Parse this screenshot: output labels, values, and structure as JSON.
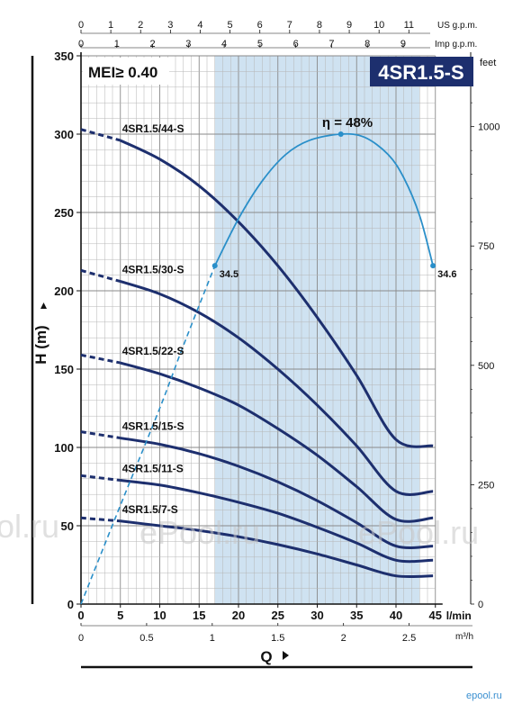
{
  "chart_data": {
    "type": "line",
    "model_badge": "4SR1.5-S",
    "mei_label": "MEI≥ 0.40",
    "ylabel": "H  (m)",
    "xlabel": "Q",
    "ylim": [
      0,
      350
    ],
    "xlim": [
      0,
      45
    ],
    "y_ticks": [
      0,
      50,
      100,
      150,
      200,
      250,
      300,
      350
    ],
    "x_ticks_lmin": [
      0,
      5,
      10,
      15,
      20,
      25,
      30,
      35,
      40,
      45
    ],
    "x_unit_lmin": "l/min",
    "x_ticks_m3h": [
      "0",
      "0.5",
      "1",
      "1.5",
      "2",
      "2.5"
    ],
    "x_ticks_m3h_values": [
      0,
      0.5,
      1,
      1.5,
      2,
      2.5
    ],
    "x_unit_m3h": "m³/h",
    "x_ticks_us": [
      0,
      1,
      2,
      3,
      4,
      5,
      6,
      7,
      8,
      9,
      10,
      11
    ],
    "x_unit_us": "US g.p.m.",
    "x_ticks_imp": [
      0,
      1,
      2,
      3,
      4,
      5,
      6,
      7,
      8,
      9
    ],
    "x_unit_imp": "Imp g.p.m.",
    "y2_ticks_feet": [
      0,
      250,
      500,
      750,
      1000
    ],
    "y2_unit": "feet",
    "recommended_range_lmin": [
      17,
      43
    ],
    "efficiency_label": "η = 48%",
    "efficiency_points": [
      {
        "x": 17,
        "y": 216,
        "label": "34.5"
      },
      {
        "x": 33,
        "y": 300,
        "label": ""
      },
      {
        "x": 45,
        "y": 216,
        "label": "34.6"
      }
    ],
    "efficiency_curve": [
      [
        0,
        0
      ],
      [
        5,
        63
      ],
      [
        10,
        125
      ],
      [
        13,
        165
      ],
      [
        17,
        216
      ],
      [
        20,
        246
      ],
      [
        23,
        270
      ],
      [
        26,
        287
      ],
      [
        29,
        296
      ],
      [
        33,
        300
      ],
      [
        36,
        298
      ],
      [
        39,
        287
      ],
      [
        41,
        272
      ],
      [
        43,
        248
      ],
      [
        45,
        216
      ]
    ],
    "series": [
      {
        "name": "4SR1.5/44-S",
        "values": [
          [
            0,
            303
          ],
          [
            5,
            296
          ],
          [
            10,
            284
          ],
          [
            15,
            267
          ],
          [
            20,
            244
          ],
          [
            25,
            216
          ],
          [
            30,
            183
          ],
          [
            35,
            146
          ],
          [
            40,
            105
          ],
          [
            45,
            101
          ]
        ]
      },
      {
        "name": "4SR1.5/30-S",
        "values": [
          [
            0,
            213
          ],
          [
            5,
            206
          ],
          [
            10,
            198
          ],
          [
            15,
            186
          ],
          [
            20,
            170
          ],
          [
            25,
            150
          ],
          [
            30,
            127
          ],
          [
            35,
            101
          ],
          [
            40,
            72
          ],
          [
            45,
            72
          ]
        ]
      },
      {
        "name": "4SR1.5/22-S",
        "values": [
          [
            0,
            159
          ],
          [
            5,
            154
          ],
          [
            10,
            147
          ],
          [
            15,
            138
          ],
          [
            20,
            127
          ],
          [
            25,
            112
          ],
          [
            30,
            95
          ],
          [
            35,
            75
          ],
          [
            40,
            54
          ],
          [
            45,
            55
          ]
        ]
      },
      {
        "name": "4SR1.5/15-S",
        "values": [
          [
            0,
            110
          ],
          [
            5,
            106
          ],
          [
            10,
            102
          ],
          [
            15,
            96
          ],
          [
            20,
            88
          ],
          [
            25,
            78
          ],
          [
            30,
            66
          ],
          [
            35,
            52
          ],
          [
            40,
            37
          ],
          [
            45,
            37
          ]
        ]
      },
      {
        "name": "4SR1.5/11-S",
        "values": [
          [
            0,
            82
          ],
          [
            5,
            79
          ],
          [
            10,
            76
          ],
          [
            15,
            71
          ],
          [
            20,
            65
          ],
          [
            25,
            58
          ],
          [
            30,
            49
          ],
          [
            35,
            39
          ],
          [
            40,
            28
          ],
          [
            45,
            28
          ]
        ]
      },
      {
        "name": "4SR1.5/7-S",
        "values": [
          [
            0,
            55
          ],
          [
            5,
            53
          ],
          [
            10,
            50
          ],
          [
            15,
            47
          ],
          [
            20,
            43
          ],
          [
            25,
            38
          ],
          [
            30,
            32
          ],
          [
            35,
            25
          ],
          [
            40,
            18
          ],
          [
            45,
            18
          ]
        ]
      }
    ]
  },
  "watermarks": [
    "ol.ru",
    "ePool.ru",
    "ePool.ru",
    "epool.ru"
  ]
}
